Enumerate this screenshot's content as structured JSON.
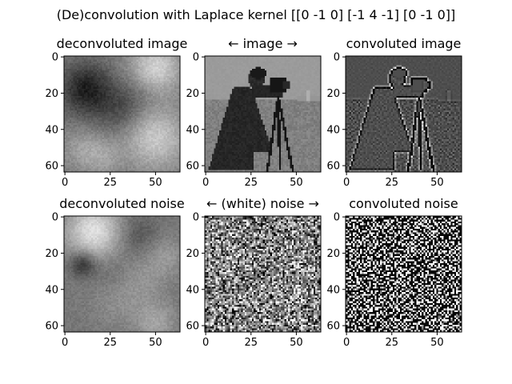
{
  "figure": {
    "suptitle": "(De)convolution with Laplace kernel [[0 -1 0] [-1 4 -1] [0 -1 0]]"
  },
  "chart_data": [
    {
      "type": "heatmap",
      "title": "deconvoluted image",
      "grid": [
        64,
        64
      ],
      "colormap": "gray",
      "content": "smooth large-scale blotches (dark upper-left, light upper-right and lower-right)",
      "x_ticks": [
        "0",
        "25",
        "50"
      ],
      "y_ticks": [
        "0",
        "20",
        "40",
        "60"
      ],
      "xlim": [
        0,
        63
      ],
      "ylim": [
        63,
        0
      ]
    },
    {
      "type": "heatmap",
      "title": "← image →",
      "grid": [
        64,
        64
      ],
      "colormap": "gray",
      "content": "cameraman photograph, low resolution",
      "x_ticks": [
        "0",
        "25",
        "50"
      ],
      "y_ticks": [
        "0",
        "20",
        "40",
        "60"
      ],
      "xlim": [
        0,
        63
      ],
      "ylim": [
        63,
        0
      ]
    },
    {
      "type": "heatmap",
      "title": "convoluted image",
      "grid": [
        64,
        64
      ],
      "colormap": "gray",
      "content": "edge map of the cameraman image on mid-gray background",
      "x_ticks": [
        "0",
        "25",
        "50"
      ],
      "y_ticks": [
        "0",
        "20",
        "40",
        "60"
      ],
      "xlim": [
        0,
        63
      ],
      "ylim": [
        63,
        0
      ]
    },
    {
      "type": "heatmap",
      "title": "deconvoluted noise",
      "grid": [
        64,
        64
      ],
      "colormap": "gray",
      "content": "smooth blotches: bright upper-left, dark spot left-middle",
      "x_ticks": [
        "0",
        "25",
        "50"
      ],
      "y_ticks": [
        "0",
        "20",
        "40",
        "60"
      ],
      "xlim": [
        0,
        63
      ],
      "ylim": [
        63,
        0
      ]
    },
    {
      "type": "heatmap",
      "title": "← (white) noise →",
      "grid": [
        64,
        64
      ],
      "colormap": "gray",
      "content": "white noise, medium contrast",
      "x_ticks": [
        "0",
        "25",
        "50"
      ],
      "y_ticks": [
        "0",
        "20",
        "40",
        "60"
      ],
      "xlim": [
        0,
        63
      ],
      "ylim": [
        63,
        0
      ]
    },
    {
      "type": "heatmap",
      "title": "convoluted noise",
      "grid": [
        64,
        64
      ],
      "colormap": "gray",
      "content": "high-contrast high-frequency noise",
      "x_ticks": [
        "0",
        "25",
        "50"
      ],
      "y_ticks": [
        "0",
        "20",
        "40",
        "60"
      ],
      "xlim": [
        0,
        63
      ],
      "ylim": [
        63,
        0
      ]
    }
  ]
}
